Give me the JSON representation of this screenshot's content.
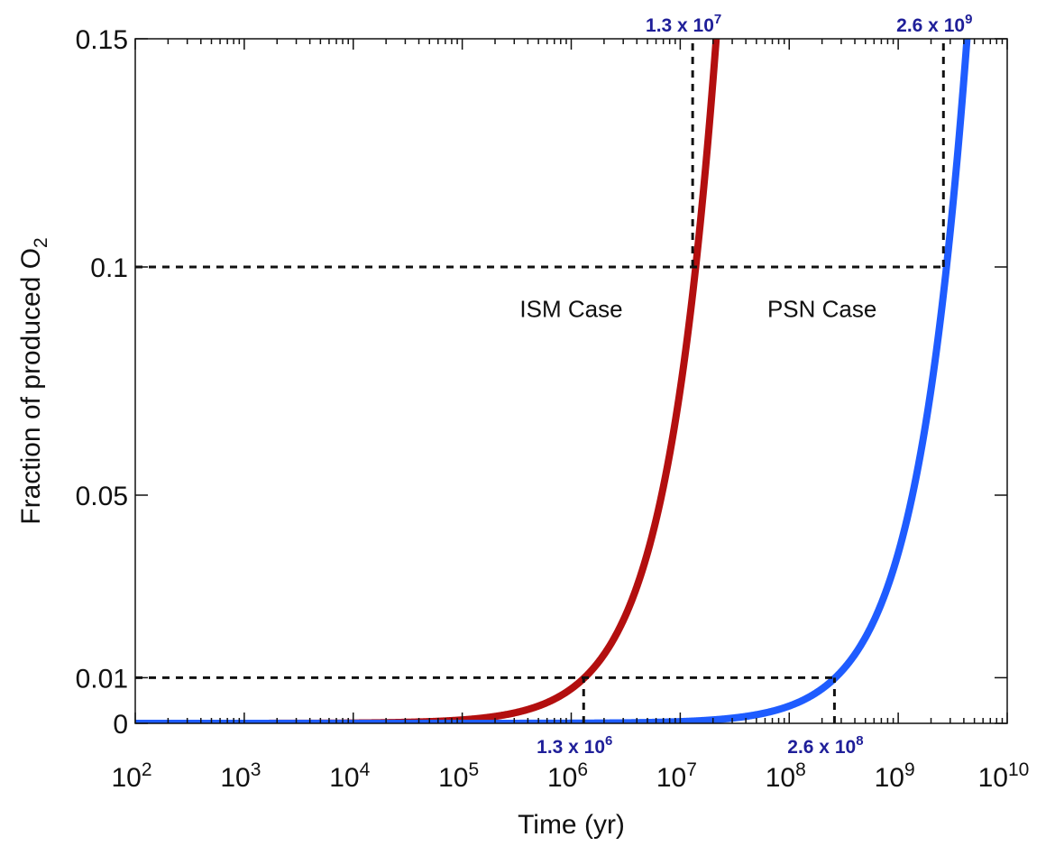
{
  "chart_data": {
    "type": "line",
    "xscale": "log",
    "xlabel": "Time (yr)",
    "ylabel_text": "Fraction of produced O",
    "ylabel_sub": "2",
    "xlim": [
      100,
      10000000000
    ],
    "ylim": [
      0,
      0.15
    ],
    "x_ticks": [
      {
        "value": 100,
        "base": "10",
        "exp": "2"
      },
      {
        "value": 1000,
        "base": "10",
        "exp": "3"
      },
      {
        "value": 10000,
        "base": "10",
        "exp": "4"
      },
      {
        "value": 100000,
        "base": "10",
        "exp": "5"
      },
      {
        "value": 1000000,
        "base": "10",
        "exp": "6"
      },
      {
        "value": 10000000,
        "base": "10",
        "exp": "7"
      },
      {
        "value": 100000000,
        "base": "10",
        "exp": "8"
      },
      {
        "value": 1000000000,
        "base": "10",
        "exp": "9"
      },
      {
        "value": 10000000000,
        "base": "10",
        "exp": "10"
      }
    ],
    "y_ticks": [
      {
        "value": 0,
        "label": "0",
        "color": "#111111"
      },
      {
        "value": 0.01,
        "label": "0.01",
        "color": "#1a1aff"
      },
      {
        "value": 0.05,
        "label": "0.05",
        "color": "#111111"
      },
      {
        "value": 0.1,
        "label": "0.1",
        "color": "#1a1aff"
      },
      {
        "value": 0.15,
        "label": "0.15",
        "color": "#111111"
      }
    ],
    "series": [
      {
        "label": "ISM Case",
        "color": "#b30f0f",
        "rate": 7.6e-09,
        "label_x": 1000000,
        "label_y": 0.089
      },
      {
        "label": "PSN Case",
        "color": "#1f5cff",
        "rate": 3.8e-11,
        "label_x": 200000000,
        "label_y": 0.089
      }
    ],
    "reference_lines": {
      "horizontal": [
        {
          "y": 0.1,
          "x_to": 2600000000
        },
        {
          "y": 0.01,
          "x_to": 260000000
        }
      ],
      "vertical": [
        {
          "x": 13000000,
          "y_from": 0.1,
          "y_to": 0.15
        },
        {
          "x": 1300000,
          "y_from": 0,
          "y_to": 0.01
        },
        {
          "x": 2600000000,
          "y_from": 0.1,
          "y_to": 0.15
        },
        {
          "x": 260000000,
          "y_from": 0,
          "y_to": 0.01
        }
      ]
    },
    "annotations": [
      {
        "mantissa": "1.3",
        "times": "x",
        "base": "10",
        "exp": "7",
        "x": 13000000,
        "pos": "above-top"
      },
      {
        "mantissa": "2.6",
        "times": "x",
        "base": "10",
        "exp": "9",
        "x": 2600000000,
        "pos": "above-top"
      },
      {
        "mantissa": "1.3",
        "times": "x",
        "base": "10",
        "exp": "6",
        "x": 1300000,
        "pos": "below-bottom"
      },
      {
        "mantissa": "2.6",
        "times": "x",
        "base": "10",
        "exp": "8",
        "x": 260000000,
        "pos": "below-bottom"
      }
    ],
    "grid": false
  }
}
